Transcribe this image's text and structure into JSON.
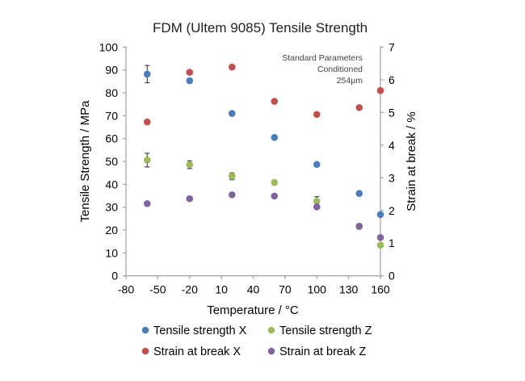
{
  "chart_data": {
    "type": "scatter",
    "title": "FDM (Ultem 9085) Tensile Strength",
    "annotation": [
      "Standard Parameters",
      "Conditioned",
      "254µm"
    ],
    "xlabel": "Temperature / °C",
    "ylabel": "Tensile Strength / MPa",
    "y2label": "Strain at break / %",
    "xlim": [
      -80,
      160
    ],
    "ylim": [
      0,
      100
    ],
    "y2lim": [
      0,
      7
    ],
    "xticks": [
      "-80",
      "-50",
      "-20",
      "10",
      "40",
      "70",
      "100",
      "130",
      "160"
    ],
    "yticks": [
      "0",
      "10",
      "20",
      "30",
      "40",
      "50",
      "60",
      "70",
      "80",
      "90",
      "100"
    ],
    "y2ticks": [
      "0",
      "1",
      "2",
      "3",
      "4",
      "5",
      "6",
      "7"
    ],
    "grid": false,
    "legend_position": "bottom",
    "x": [
      -60,
      -20,
      20,
      60,
      100,
      140,
      160
    ],
    "series": [
      {
        "name": "Tensile strength X",
        "axis": "left",
        "color": "#4a7ebb",
        "values": [
          88.2,
          85.3,
          71.0,
          60.5,
          48.7,
          36.0,
          26.8
        ],
        "errors": [
          3.8,
          1.0,
          0,
          0,
          0,
          0,
          0
        ]
      },
      {
        "name": "Tensile strength Z",
        "axis": "left",
        "color": "#9bbb59",
        "values": [
          50.6,
          48.6,
          43.5,
          40.8,
          32.6,
          21.5,
          13.4
        ],
        "errors": [
          3.0,
          1.7,
          1.5,
          1.0,
          2.0,
          1.0,
          0
        ]
      },
      {
        "name": "Strain at break X",
        "axis": "right",
        "color": "#c0504d",
        "values": [
          4.71,
          6.23,
          6.39,
          5.34,
          4.94,
          5.15,
          5.67
        ],
        "errors": [
          0,
          0,
          0,
          0,
          0,
          0,
          0
        ]
      },
      {
        "name": "Strain at break Z",
        "axis": "right",
        "color": "#8064a2",
        "values": [
          2.21,
          2.36,
          2.48,
          2.44,
          2.11,
          1.52,
          1.17
        ],
        "errors": [
          0,
          0,
          0,
          0,
          0,
          0,
          0
        ]
      }
    ]
  }
}
